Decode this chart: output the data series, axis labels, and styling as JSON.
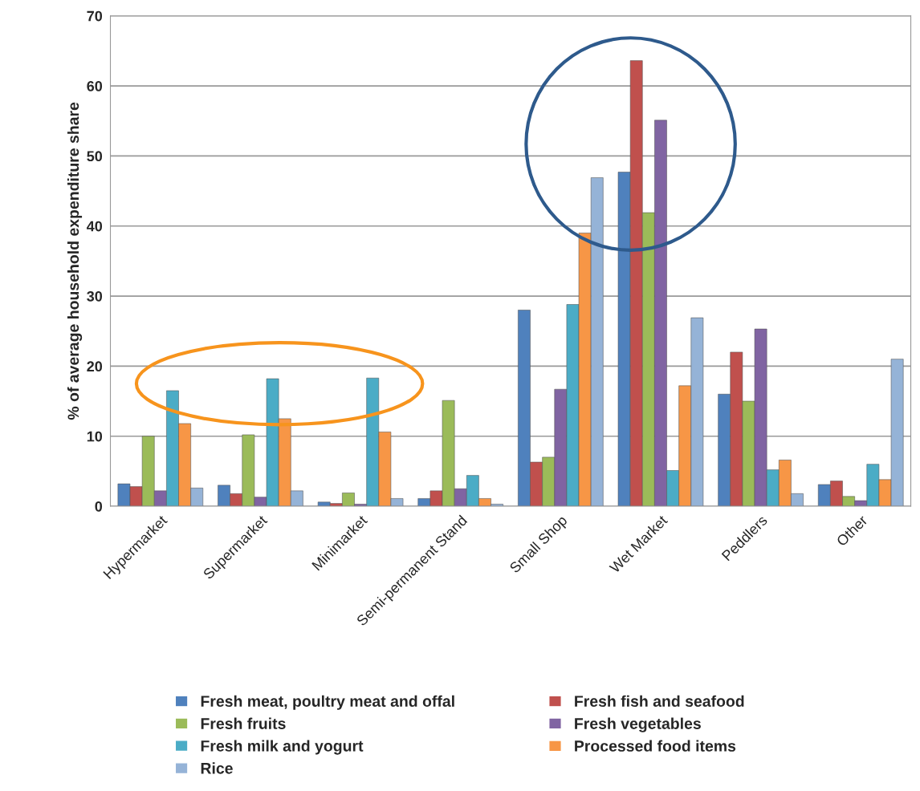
{
  "chart_data": {
    "type": "bar",
    "ylabel": "% of average household expenditure share",
    "categories": [
      "Hypermarket",
      "Supermarket",
      "Minimarket",
      "Semi-permanent Stand",
      "Small Shop",
      "Wet Market",
      "Peddlers",
      "Other"
    ],
    "series": [
      {
        "name": "Fresh meat, poultry meat and offal",
        "color": "#4f81bd",
        "values": [
          3.2,
          3.0,
          0.6,
          1.1,
          28.0,
          47.7,
          16.0,
          3.1
        ]
      },
      {
        "name": "Fresh fish and seafood",
        "color": "#c0504d",
        "values": [
          2.8,
          1.8,
          0.4,
          2.2,
          6.3,
          63.6,
          22.0,
          3.6
        ]
      },
      {
        "name": "Fresh fruits",
        "color": "#9bbb59",
        "values": [
          10.0,
          10.2,
          1.9,
          15.1,
          7.0,
          41.9,
          15.0,
          1.4
        ]
      },
      {
        "name": "Fresh vegetables",
        "color": "#8064a2",
        "values": [
          2.2,
          1.3,
          0.3,
          2.5,
          16.7,
          55.1,
          25.3,
          0.8
        ]
      },
      {
        "name": "Fresh milk and yogurt",
        "color": "#4bacc6",
        "values": [
          16.5,
          18.2,
          18.3,
          4.4,
          28.8,
          5.1,
          5.2,
          6.0
        ]
      },
      {
        "name": "Processed food items",
        "color": "#f79646",
        "values": [
          11.8,
          12.5,
          10.6,
          1.1,
          39.0,
          17.2,
          6.6,
          3.8
        ]
      },
      {
        "name": "Rice",
        "color": "#95b3d7",
        "values": [
          2.6,
          2.2,
          1.1,
          0.3,
          46.9,
          26.9,
          1.8,
          21.0
        ]
      }
    ],
    "ylim": [
      0,
      70
    ],
    "yticks": [
      0,
      10,
      20,
      30,
      40,
      50,
      60,
      70
    ],
    "grid": "y",
    "legend": "bottom"
  }
}
